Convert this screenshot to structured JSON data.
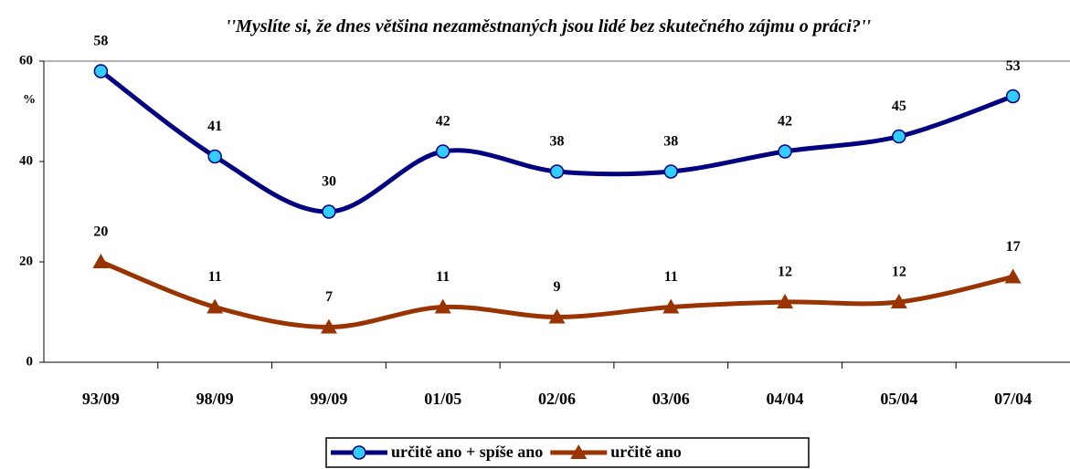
{
  "chart_data": {
    "type": "line",
    "title": "''Myslíte si, že dnes většina nezaměstnaných jsou lidé bez skutečného zájmu o práci?''",
    "y_label": "%",
    "categories": [
      "93/09",
      "98/09",
      "99/09",
      "01/05",
      "02/06",
      "03/06",
      "04/04",
      "05/04",
      "07/04"
    ],
    "series": [
      {
        "name": "určitě ano + spíše ano",
        "color": "#000080",
        "marker_color": "#33ccff",
        "marker": "circle",
        "values": [
          58,
          41,
          30,
          42,
          38,
          38,
          42,
          45,
          53
        ]
      },
      {
        "name": "určitě ano",
        "color": "#993300",
        "marker_color": "#993300",
        "marker": "triangle",
        "values": [
          20,
          11,
          7,
          11,
          9,
          11,
          12,
          12,
          17
        ]
      }
    ],
    "ylim": [
      0,
      60
    ],
    "yticks": [
      0,
      20,
      40,
      60
    ],
    "grid": false,
    "legend": "bottom"
  }
}
